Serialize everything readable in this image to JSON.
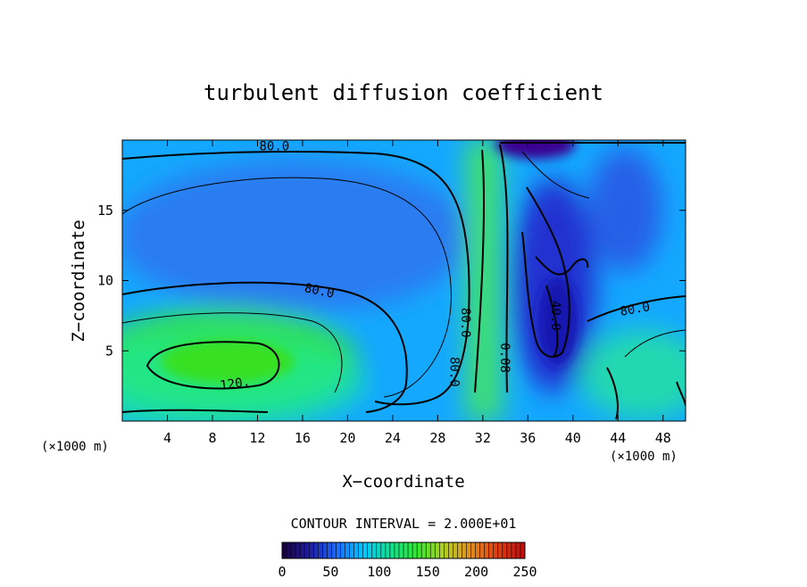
{
  "chart_data": {
    "type": "heatmap",
    "title": "turbulent diffusion coefficient",
    "xlabel": "X−coordinate",
    "ylabel": "Z−coordinate",
    "x_unit": "(×1000 m)",
    "x_unit_right": "(×1000 m)",
    "xlim": [
      0,
      50
    ],
    "ylim": [
      0,
      20
    ],
    "x_ticks": [
      4,
      8,
      12,
      16,
      20,
      24,
      28,
      32,
      36,
      40,
      44,
      48
    ],
    "y_ticks": [
      5,
      10,
      15
    ],
    "contour_interval_text": "CONTOUR INTERVAL = 2.000E+01",
    "contour_labels": [
      {
        "text": "80.0",
        "x": 13.5,
        "z": 19.6
      },
      {
        "text": "80.0",
        "x": 17.5,
        "z": 9.3
      },
      {
        "text": "120.",
        "x": 10.0,
        "z": 2.7
      },
      {
        "text": "80.0",
        "x": 30.5,
        "z": 7.0
      },
      {
        "text": "80.0",
        "x": 29.5,
        "z": 3.5
      },
      {
        "text": "0.08",
        "x": 34.0,
        "z": 4.5
      },
      {
        "text": "40.0",
        "x": 38.5,
        "z": 7.5
      },
      {
        "text": "80.0",
        "x": 45.5,
        "z": 8.0
      }
    ],
    "colorbar": {
      "min": 0,
      "max": 250,
      "tick_labels": [
        "0",
        "50",
        "100",
        "150",
        "200",
        "250"
      ],
      "colors": [
        "#1a0044",
        "#2020a8",
        "#1a6cff",
        "#00c8ff",
        "#10e090",
        "#30e830",
        "#b0d020",
        "#e09020",
        "#e04010",
        "#c01010"
      ]
    },
    "field_regions": [
      {
        "name": "upper-left-blue",
        "x": 15,
        "z": 14,
        "value": 75
      },
      {
        "name": "lower-left-green",
        "x": 8,
        "z": 4.5,
        "value": 125
      },
      {
        "name": "central-green-column",
        "x": 31,
        "z": 10,
        "value": 105
      },
      {
        "name": "right-dark-blue",
        "x": 37.5,
        "z": 14,
        "value": 35
      },
      {
        "name": "top-purple",
        "x": 36.5,
        "z": 19.5,
        "value": 15
      },
      {
        "name": "right-lower-region",
        "x": 46,
        "z": 5,
        "value": 95
      }
    ]
  }
}
